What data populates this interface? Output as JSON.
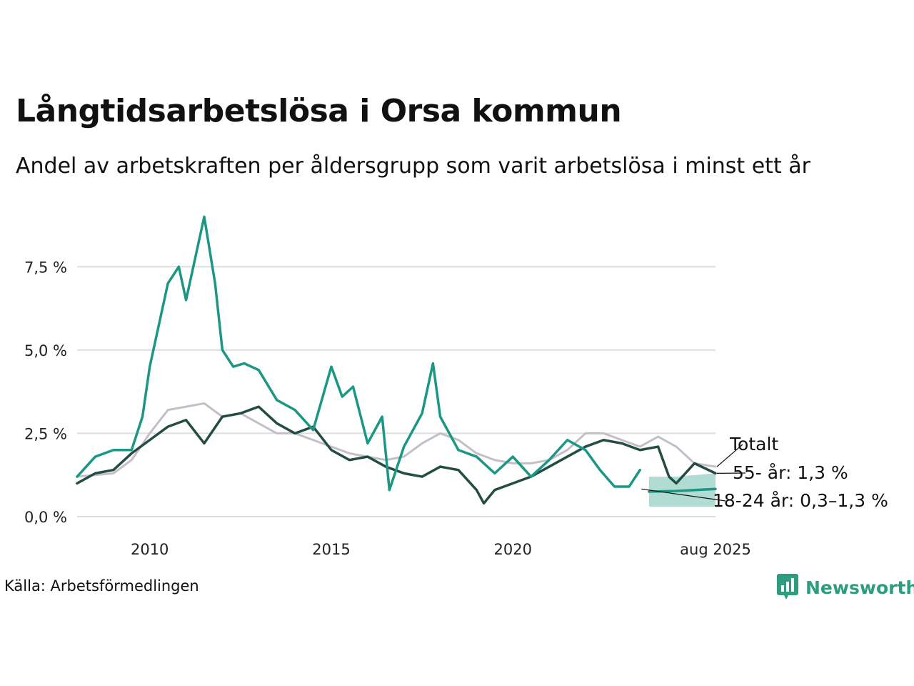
{
  "title": "Långtidsarbetslösa i Orsa kommun",
  "subtitle": "Andel av arbetskraften per åldersgrupp som varit arbetslösa i minst ett år",
  "source": "Källa: Arbetsförmedlingen",
  "brand": "Newsworthy",
  "colors": {
    "total": "#c4bec9",
    "age55": "#234d43",
    "age18_24": "#1b9784",
    "band": "#a3d6cd",
    "grid": "#dedede"
  },
  "chart_data": {
    "type": "line",
    "ylim": [
      0,
      9.5
    ],
    "xlim": [
      2008.0,
      2025.58
    ],
    "yticks": [
      0,
      2.5,
      5,
      7.5
    ],
    "ytick_labels": [
      "0,0 %",
      "2,5 %",
      "5,0 %",
      "7,5 %"
    ],
    "xticks": [
      2010,
      2015,
      2020,
      2025.58
    ],
    "xtick_labels": [
      "2010",
      "2015",
      "2020",
      "aug 2025"
    ],
    "grid": true,
    "series": [
      {
        "name": "Totalt",
        "label": "Totalt",
        "color_key": "total",
        "x": [
          2008.0,
          2008.5,
          2009.0,
          2009.5,
          2010.0,
          2010.5,
          2011.0,
          2011.5,
          2012.0,
          2012.5,
          2013.0,
          2013.5,
          2014.0,
          2014.5,
          2015.0,
          2015.5,
          2016.0,
          2016.5,
          2017.0,
          2017.5,
          2018.0,
          2018.5,
          2019.0,
          2019.5,
          2020.0,
          2020.5,
          2021.0,
          2021.5,
          2022.0,
          2022.5,
          2023.0,
          2023.5,
          2024.0,
          2024.5,
          2025.0,
          2025.58
        ],
        "y": [
          1.2,
          1.25,
          1.3,
          1.7,
          2.5,
          3.2,
          3.3,
          3.4,
          3.0,
          3.1,
          2.8,
          2.5,
          2.5,
          2.3,
          2.1,
          1.9,
          1.8,
          1.7,
          1.8,
          2.2,
          2.5,
          2.3,
          1.9,
          1.7,
          1.6,
          1.6,
          1.7,
          2.0,
          2.5,
          2.5,
          2.3,
          2.1,
          2.4,
          2.1,
          1.6,
          1.5
        ]
      },
      {
        "name": "55- år",
        "label": "55- år: 1,3 %",
        "color_key": "age55",
        "x": [
          2008.0,
          2008.5,
          2009.0,
          2009.5,
          2010.0,
          2010.5,
          2011.0,
          2011.5,
          2012.0,
          2012.5,
          2013.0,
          2013.5,
          2014.0,
          2014.5,
          2015.0,
          2015.5,
          2016.0,
          2016.5,
          2017.0,
          2017.5,
          2018.0,
          2018.5,
          2019.0,
          2019.2,
          2019.5,
          2020.0,
          2020.5,
          2021.0,
          2021.5,
          2022.0,
          2022.5,
          2023.0,
          2023.5,
          2024.0,
          2024.3,
          2024.5,
          2025.0,
          2025.58
        ],
        "y": [
          1.0,
          1.3,
          1.4,
          1.9,
          2.3,
          2.7,
          2.9,
          2.2,
          3.0,
          3.1,
          3.3,
          2.8,
          2.5,
          2.7,
          2.0,
          1.7,
          1.8,
          1.5,
          1.3,
          1.2,
          1.5,
          1.4,
          0.8,
          0.4,
          0.8,
          1.0,
          1.2,
          1.5,
          1.8,
          2.1,
          2.3,
          2.2,
          2.0,
          2.1,
          1.2,
          1.0,
          1.6,
          1.3
        ]
      },
      {
        "name": "18-24 år",
        "label": "18-24 år: 0,3–1,3 %",
        "color_key": "age18_24",
        "x": [
          2008.0,
          2008.5,
          2009.0,
          2009.5,
          2009.8,
          2010.0,
          2010.3,
          2010.5,
          2010.8,
          2011.0,
          2011.2,
          2011.5,
          2011.8,
          2012.0,
          2012.3,
          2012.6,
          2013.0,
          2013.5,
          2014.0,
          2014.5,
          2015.0,
          2015.3,
          2015.6,
          2016.0,
          2016.4,
          2016.6,
          2017.0,
          2017.5,
          2017.8,
          2018.0,
          2018.5,
          2019.0,
          2019.5,
          2020.0,
          2020.5,
          2021.0,
          2021.5,
          2022.0,
          2022.4,
          2022.8,
          2023.2,
          2023.5
        ],
        "y": [
          1.2,
          1.8,
          2.0,
          2.0,
          3.0,
          4.5,
          6.0,
          7.0,
          7.5,
          6.5,
          7.5,
          9.0,
          7.0,
          5.0,
          4.5,
          4.6,
          4.4,
          3.5,
          3.2,
          2.6,
          4.5,
          3.6,
          3.9,
          2.2,
          3.0,
          0.8,
          2.1,
          3.1,
          4.6,
          3.0,
          2.0,
          1.8,
          1.3,
          1.8,
          1.2,
          1.7,
          2.3,
          2.0,
          1.4,
          0.9,
          0.9,
          1.4
        ]
      },
      {
        "name": "18-24 år prognos",
        "color_key": "age18_24",
        "x": [
          2023.75,
          2024.5,
          2025.58
        ],
        "y": [
          0.75,
          0.77,
          0.83
        ],
        "band_low": [
          0.3,
          0.3,
          0.3
        ],
        "band_high": [
          1.2,
          1.2,
          1.3
        ]
      }
    ]
  }
}
